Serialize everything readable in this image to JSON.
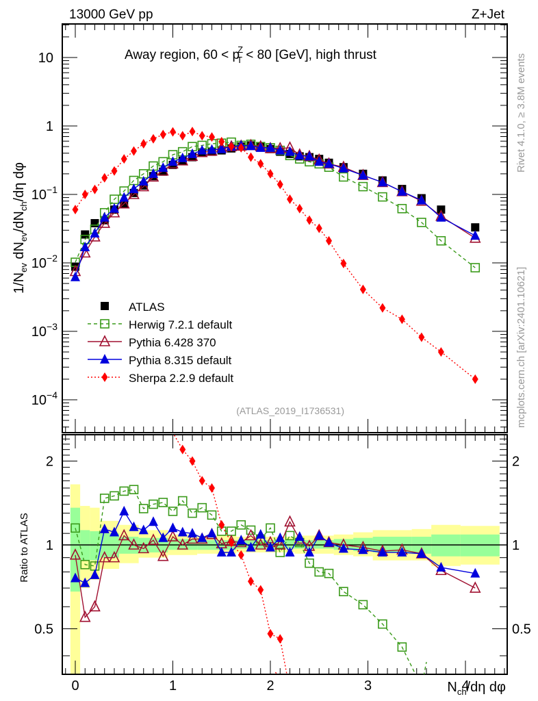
{
  "header": {
    "left": "13000 GeV pp",
    "right": "Z+Jet"
  },
  "side_labels": {
    "rivet": "Rivet 4.1.0, ≥ 3.8M events",
    "mcplots": "mcplots.cern.ch [arXiv:2401.10621]"
  },
  "chart_data": [
    {
      "type": "scatter",
      "panel": "main",
      "title": "Away region, 60 < p_T^Z < 80 [GeV], high thrust",
      "title_parts": {
        "pre": "Away region, 60 < p",
        "sup": "Z",
        "sub": "T",
        "post": " < 80 [GeV], high thrust"
      },
      "xlabel": "N_ch/dη dφ",
      "ylabel": "1/N_ev dN_ev/dN_ch/dη dφ",
      "ylabel_parts": [
        "1/N",
        "ev",
        " dN",
        "ev",
        "/dN",
        "ch",
        "/dη dφ"
      ],
      "yscale": "log",
      "ylim": [
        3e-05,
        30
      ],
      "xlim": [
        -0.13,
        4.45
      ],
      "ytick_labels": [
        {
          "v": 10,
          "base": "10",
          "exp": ""
        },
        {
          "v": 1,
          "base": "1",
          "exp": ""
        },
        {
          "v": 0.1,
          "base": "10",
          "exp": "−1"
        },
        {
          "v": 0.01,
          "base": "10",
          "exp": "−2"
        },
        {
          "v": 0.001,
          "base": "10",
          "exp": "−3"
        },
        {
          "v": 0.0001,
          "base": "10",
          "exp": "−4"
        }
      ],
      "watermark": "(ATLAS_2019_I1736531)",
      "legend_position": "lower-left",
      "x": [
        0.0,
        0.1,
        0.2,
        0.3,
        0.4,
        0.5,
        0.6,
        0.7,
        0.8,
        0.9,
        1.0,
        1.1,
        1.2,
        1.3,
        1.4,
        1.5,
        1.6,
        1.7,
        1.8,
        1.9,
        2.0,
        2.1,
        2.2,
        2.3,
        2.4,
        2.5,
        2.6,
        2.75,
        2.95,
        3.15,
        3.35,
        3.55,
        3.75,
        4.1
      ],
      "series": [
        {
          "name": "ATLAS",
          "style": "data",
          "color": "#000000",
          "values": [
            0.0088,
            0.026,
            0.038,
            0.042,
            0.06,
            0.072,
            0.105,
            0.135,
            0.185,
            0.215,
            0.27,
            0.31,
            0.35,
            0.41,
            0.42,
            0.44,
            0.47,
            0.5,
            0.52,
            0.5,
            0.46,
            0.42,
            0.39,
            0.36,
            0.35,
            0.33,
            0.29,
            0.25,
            0.2,
            0.16,
            0.12,
            0.088,
            0.06,
            0.033
          ]
        },
        {
          "name": "Herwig 7.2.1 default",
          "style": "open-square-dashed",
          "color": "#3a9a1a",
          "values": [
            0.0102,
            0.022,
            0.031,
            0.054,
            0.085,
            0.112,
            0.16,
            0.2,
            0.26,
            0.3,
            0.38,
            0.42,
            0.5,
            0.52,
            0.55,
            0.56,
            0.58,
            0.52,
            0.54,
            0.5,
            0.48,
            0.44,
            0.37,
            0.33,
            0.3,
            0.28,
            0.25,
            0.18,
            0.13,
            0.092,
            0.062,
            0.039,
            0.021,
            0.0085
          ]
        },
        {
          "name": "Pythia 6.428 370",
          "style": "open-triangle-solid",
          "color": "#a01030",
          "values": [
            0.0075,
            0.014,
            0.024,
            0.038,
            0.054,
            0.073,
            0.1,
            0.13,
            0.18,
            0.22,
            0.28,
            0.31,
            0.36,
            0.41,
            0.43,
            0.48,
            0.5,
            0.51,
            0.52,
            0.5,
            0.47,
            0.47,
            0.48,
            0.38,
            0.36,
            0.32,
            0.28,
            0.25,
            0.19,
            0.15,
            0.11,
            0.08,
            0.048,
            0.023
          ]
        },
        {
          "name": "Pythia 8.315 default",
          "style": "filled-triangle-solid",
          "color": "#0000dd",
          "values": [
            0.0062,
            0.017,
            0.027,
            0.046,
            0.062,
            0.09,
            0.12,
            0.155,
            0.2,
            0.245,
            0.3,
            0.34,
            0.39,
            0.44,
            0.45,
            0.46,
            0.5,
            0.52,
            0.51,
            0.48,
            0.48,
            0.44,
            0.42,
            0.37,
            0.36,
            0.3,
            0.28,
            0.24,
            0.19,
            0.15,
            0.11,
            0.082,
            0.046,
            0.025
          ]
        },
        {
          "name": "Sherpa 2.2.9 default",
          "style": "filled-diamond-dotted",
          "color": "#ff0000",
          "values": [
            0.06,
            0.1,
            0.118,
            0.175,
            0.22,
            0.33,
            0.43,
            0.55,
            0.65,
            0.75,
            0.82,
            0.72,
            0.83,
            0.72,
            0.69,
            0.59,
            0.5,
            0.48,
            0.35,
            0.28,
            0.2,
            0.14,
            0.085,
            0.062,
            0.042,
            0.032,
            0.021,
            0.0098,
            0.0041,
            0.0022,
            0.0015,
            0.00082,
            0.0005,
            0.0002
          ]
        }
      ]
    },
    {
      "type": "scatter",
      "panel": "ratio",
      "ylabel": "Ratio to ATLAS",
      "xlabel": "N_ch/dη dφ",
      "yscale": "log",
      "ylim": [
        0.4,
        2.4
      ],
      "ytick_labels": [
        "0.5",
        "1",
        "2"
      ],
      "yticks": [
        0.5,
        1,
        2
      ],
      "xtick_labels": [
        "0",
        "1",
        "2",
        "3",
        "4"
      ],
      "xticks": [
        0,
        1,
        2,
        3,
        4
      ],
      "band_bins": [
        {
          "lo": -0.05,
          "hi": 0.05,
          "g": [
            0.68,
            1.36
          ],
          "y": [
            0.3,
            1.65
          ]
        },
        {
          "lo": 0.05,
          "hi": 0.15,
          "g": [
            0.88,
            1.13
          ],
          "y": [
            0.7,
            1.38
          ]
        },
        {
          "lo": 0.15,
          "hi": 0.25,
          "g": [
            0.88,
            1.12
          ],
          "y": [
            0.75,
            1.36
          ]
        },
        {
          "lo": 0.25,
          "hi": 0.45,
          "g": [
            0.9,
            1.1
          ],
          "y": [
            0.82,
            1.22
          ]
        },
        {
          "lo": 0.45,
          "hi": 0.65,
          "g": [
            0.93,
            1.07
          ],
          "y": [
            0.86,
            1.18
          ]
        },
        {
          "lo": 0.65,
          "hi": 0.95,
          "g": [
            0.94,
            1.06
          ],
          "y": [
            0.9,
            1.13
          ]
        },
        {
          "lo": 0.95,
          "hi": 1.25,
          "g": [
            0.96,
            1.05
          ],
          "y": [
            0.92,
            1.09
          ]
        },
        {
          "lo": 1.25,
          "hi": 1.65,
          "g": [
            0.96,
            1.04
          ],
          "y": [
            0.93,
            1.08
          ]
        },
        {
          "lo": 1.65,
          "hi": 2.25,
          "g": [
            0.97,
            1.04
          ],
          "y": [
            0.94,
            1.07
          ]
        },
        {
          "lo": 2.25,
          "hi": 2.65,
          "g": [
            0.97,
            1.04
          ],
          "y": [
            0.93,
            1.08
          ]
        },
        {
          "lo": 2.65,
          "hi": 2.85,
          "g": [
            0.96,
            1.05
          ],
          "y": [
            0.92,
            1.09
          ]
        },
        {
          "lo": 2.85,
          "hi": 3.05,
          "g": [
            0.95,
            1.06
          ],
          "y": [
            0.91,
            1.11
          ]
        },
        {
          "lo": 3.05,
          "hi": 3.45,
          "g": [
            0.94,
            1.07
          ],
          "y": [
            0.88,
            1.13
          ]
        },
        {
          "lo": 3.45,
          "hi": 3.65,
          "g": [
            0.93,
            1.07
          ],
          "y": [
            0.88,
            1.14
          ]
        },
        {
          "lo": 3.65,
          "hi": 3.95,
          "g": [
            0.91,
            1.09
          ],
          "y": [
            0.84,
            1.18
          ]
        },
        {
          "lo": 3.95,
          "hi": 4.35,
          "g": [
            0.91,
            1.09
          ],
          "y": [
            0.85,
            1.17
          ]
        }
      ],
      "series": [
        {
          "name": "Herwig 7.2.1 default",
          "color": "#3a9a1a",
          "values": [
            1.15,
            0.85,
            0.84,
            1.47,
            1.5,
            1.56,
            1.58,
            1.35,
            1.4,
            1.42,
            1.32,
            1.44,
            1.3,
            1.36,
            1.28,
            1.12,
            1.12,
            1.18,
            1.13,
            1.05,
            1.15,
            0.94,
            1.08,
            1.02,
            0.86,
            0.8,
            0.79,
            0.68,
            0.61,
            0.52,
            0.43,
            0.31,
            null,
            null
          ]
        },
        {
          "name": "Pythia 6.428 370",
          "color": "#a01030",
          "values": [
            0.92,
            0.55,
            0.6,
            0.9,
            0.9,
            1.08,
            1.0,
            0.97,
            1.04,
            0.91,
            1.07,
            1.0,
            1.05,
            1.05,
            1.09,
            1.01,
            1.03,
            1.02,
            1.08,
            1.0,
            1.02,
            1.0,
            1.21,
            1.05,
            0.99,
            1.08,
            1.02,
            1.0,
            0.98,
            0.95,
            0.96,
            0.93,
            0.81,
            0.7
          ]
        },
        {
          "name": "Pythia 8.315 default",
          "color": "#0000dd",
          "values": [
            0.76,
            0.73,
            0.78,
            1.14,
            1.11,
            1.32,
            1.16,
            1.13,
            1.21,
            1.06,
            1.15,
            1.11,
            1.1,
            1.06,
            1.1,
            0.94,
            0.94,
            1.04,
            0.98,
            1.09,
            0.98,
            1.06,
            0.94,
            1.07,
            0.94,
            1.08,
            1.02,
            0.97,
            0.96,
            0.94,
            0.94,
            0.93,
            0.83,
            0.79
          ]
        },
        {
          "name": "Sherpa 2.2.9 default",
          "color": "#ff0000",
          "values": [
            null,
            null,
            null,
            null,
            null,
            null,
            null,
            null,
            null,
            null,
            null,
            2.2,
            2.0,
            1.7,
            1.6,
            1.18,
            1.02,
            0.92,
            0.74,
            0.69,
            0.48,
            0.46,
            0.3,
            null,
            null,
            null,
            null,
            null,
            null,
            null,
            null,
            null,
            null,
            null
          ]
        }
      ]
    }
  ]
}
